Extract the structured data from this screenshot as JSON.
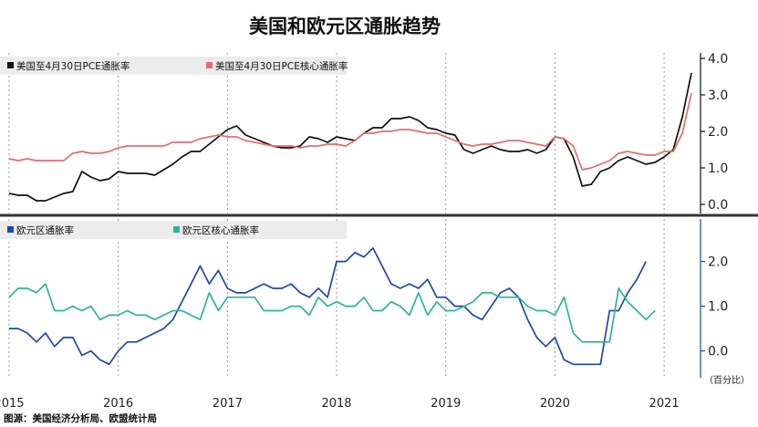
{
  "title": "美国和欧元区通胀趋势",
  "source": "图源：美国经济分析局、欧盟统计局",
  "x_tick_labels": [
    "2015",
    "2016",
    "2017",
    "2018",
    "2019",
    "2020",
    "2021"
  ],
  "y_unit": "（百分比）",
  "colors": {
    "us_pce": "#111111",
    "us_core": "#e96b6b",
    "ea_hicp": "#1f45b4",
    "ea_core": "#2bb596",
    "legend_bg": "#ececec",
    "grid": "#999999",
    "separator": "#333333",
    "right_axis_top": "#111111",
    "right_axis_bottom": "#1f45b4"
  },
  "chart_data": [
    {
      "type": "line",
      "name_panel": "top",
      "title": "美国和欧元区通胀趋势",
      "x_start": "2015-01",
      "x_label_months": [
        "2015-01",
        "2016-01",
        "2017-01",
        "2018-01",
        "2019-01",
        "2020-01",
        "2021-01"
      ],
      "y_ticks": [
        0.0,
        1.0,
        2.0,
        3.0,
        4.0
      ],
      "y_tick_labels": [
        "0.0",
        "1.0",
        "2.0",
        "3.0",
        "4.0"
      ],
      "ylim": [
        -0.25,
        4.15
      ],
      "xlim": [
        "2014-12",
        "2021-05"
      ],
      "grid": "dashed-vertical-at-years",
      "y_axis_position": "right",
      "legend": "top-left",
      "series": [
        {
          "name": "美国至4月30日PCE通胀率",
          "values": [
            0.3,
            0.25,
            0.25,
            0.1,
            0.1,
            0.2,
            0.3,
            0.35,
            0.9,
            0.75,
            0.65,
            0.7,
            0.9,
            0.85,
            0.85,
            0.85,
            0.8,
            0.95,
            1.1,
            1.3,
            1.45,
            1.45,
            1.65,
            1.85,
            2.05,
            2.15,
            1.9,
            1.8,
            1.7,
            1.6,
            1.55,
            1.55,
            1.6,
            1.85,
            1.8,
            1.7,
            1.85,
            1.8,
            1.75,
            1.95,
            2.1,
            2.1,
            2.35,
            2.35,
            2.4,
            2.3,
            2.1,
            2.05,
            1.95,
            1.9,
            1.5,
            1.4,
            1.5,
            1.6,
            1.5,
            1.45,
            1.45,
            1.5,
            1.4,
            1.5,
            1.85,
            1.8,
            1.3,
            0.5,
            0.55,
            0.9,
            1.0,
            1.2,
            1.3,
            1.2,
            1.1,
            1.15,
            1.3,
            1.5,
            2.4,
            3.6
          ]
        },
        {
          "name": "美国至4月30日PCE核心通胀率",
          "values": [
            1.25,
            1.2,
            1.25,
            1.2,
            1.2,
            1.2,
            1.2,
            1.4,
            1.45,
            1.4,
            1.4,
            1.45,
            1.55,
            1.6,
            1.6,
            1.6,
            1.6,
            1.6,
            1.7,
            1.7,
            1.7,
            1.8,
            1.85,
            1.9,
            1.85,
            1.85,
            1.75,
            1.7,
            1.65,
            1.6,
            1.6,
            1.6,
            1.55,
            1.6,
            1.6,
            1.65,
            1.65,
            1.6,
            1.75,
            1.95,
            1.95,
            2.0,
            2.0,
            2.05,
            2.05,
            2.0,
            1.95,
            1.95,
            1.85,
            1.75,
            1.65,
            1.6,
            1.65,
            1.65,
            1.7,
            1.75,
            1.75,
            1.7,
            1.65,
            1.6,
            1.85,
            1.8,
            1.6,
            0.95,
            1.0,
            1.1,
            1.2,
            1.4,
            1.45,
            1.4,
            1.35,
            1.35,
            1.45,
            1.45,
            1.95,
            3.05
          ]
        }
      ]
    },
    {
      "type": "line",
      "name_panel": "bottom",
      "x_start": "2015-01",
      "y_ticks": [
        0.0,
        1.0,
        2.0
      ],
      "y_tick_labels": [
        "0.0",
        "1.0",
        "2.0"
      ],
      "ylim": [
        -0.6,
        2.95
      ],
      "xlim": [
        "2014-12",
        "2021-05"
      ],
      "y_axis_position": "right",
      "legend": "top-left",
      "series": [
        {
          "name": "欧元区通胀率",
          "values": [
            0.5,
            0.5,
            0.4,
            0.2,
            0.4,
            0.1,
            0.3,
            0.3,
            -0.1,
            0.0,
            -0.2,
            -0.3,
            0.0,
            0.2,
            0.2,
            0.3,
            0.4,
            0.5,
            0.7,
            1.1,
            1.5,
            1.9,
            1.5,
            1.8,
            1.4,
            1.3,
            1.3,
            1.4,
            1.5,
            1.4,
            1.4,
            1.5,
            1.3,
            1.2,
            1.4,
            1.2,
            2.0,
            2.0,
            2.2,
            2.1,
            2.3,
            1.9,
            1.5,
            1.4,
            1.5,
            1.4,
            1.6,
            1.2,
            1.2,
            1.0,
            1.0,
            0.8,
            0.7,
            1.0,
            1.3,
            1.4,
            1.2,
            0.7,
            0.3,
            0.1,
            0.3,
            -0.2,
            -0.3,
            -0.3,
            -0.3,
            -0.3,
            0.9,
            0.9,
            1.3,
            1.6,
            2.0
          ]
        },
        {
          "name": "欧元区核心通胀率",
          "values": [
            1.2,
            1.4,
            1.4,
            1.3,
            1.5,
            0.9,
            0.9,
            1.0,
            0.9,
            1.0,
            0.7,
            0.8,
            0.8,
            0.9,
            0.8,
            0.8,
            0.7,
            0.8,
            0.9,
            0.9,
            0.8,
            0.7,
            1.3,
            0.9,
            1.2,
            1.2,
            1.2,
            1.2,
            0.9,
            0.9,
            0.9,
            1.0,
            1.0,
            0.8,
            1.2,
            1.0,
            1.1,
            1.0,
            1.0,
            1.2,
            0.9,
            0.9,
            1.1,
            1.0,
            0.8,
            1.3,
            0.8,
            1.1,
            0.9,
            0.9,
            1.0,
            1.1,
            1.3,
            1.3,
            1.2,
            1.2,
            1.2,
            1.0,
            0.9,
            0.9,
            0.8,
            1.2,
            0.4,
            0.2,
            0.2,
            0.2,
            0.2,
            1.4,
            1.1,
            0.9,
            0.7,
            0.9
          ]
        }
      ]
    }
  ]
}
